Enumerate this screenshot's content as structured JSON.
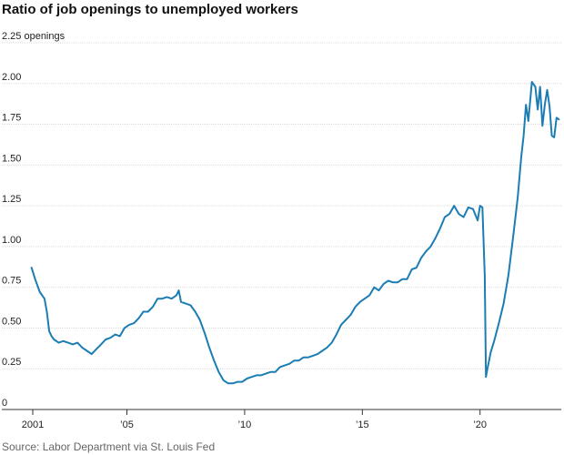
{
  "title": "Ratio of job openings to unemployed workers",
  "source": "Source: Labor Department via St. Louis Fed",
  "chart_data": {
    "type": "line",
    "title": "Ratio of job openings to unemployed workers",
    "ylabel": "",
    "xlabel": "",
    "unit_label": "openings",
    "ylim": [
      0,
      2.25
    ],
    "xlim": [
      2001.0,
      2023.45
    ],
    "y_ticks": [
      0,
      0.25,
      0.5,
      0.75,
      1.0,
      1.25,
      1.5,
      1.75,
      2.0,
      2.25
    ],
    "y_tick_labels": [
      "0",
      "0.25",
      "0.50",
      "0.75",
      "1.00",
      "1.25",
      "1.50",
      "1.75",
      "2.00",
      "2.25 openings"
    ],
    "x_ticks": [
      2001,
      2005,
      2010,
      2015,
      2020
    ],
    "x_tick_labels": [
      "2001",
      "’05",
      "’10",
      "’15",
      "’20"
    ],
    "grid": true,
    "line_color": "#1b7db3",
    "series": [
      {
        "x": [
          2000.95,
          2001.1,
          2001.3,
          2001.5,
          2001.6,
          2001.7,
          2001.8,
          2001.9,
          2002.1,
          2002.3,
          2002.5,
          2002.7,
          2002.9,
          2003.1,
          2003.3,
          2003.5,
          2003.7,
          2003.9,
          2004.1,
          2004.3,
          2004.5,
          2004.7,
          2004.9,
          2005.1,
          2005.3,
          2005.5,
          2005.7,
          2005.9,
          2006.1,
          2006.3,
          2006.5,
          2006.7,
          2006.9,
          2007.1,
          2007.2,
          2007.3,
          2007.5,
          2007.7,
          2007.9,
          2008.1,
          2008.3,
          2008.5,
          2008.7,
          2008.9,
          2009.1,
          2009.3,
          2009.5,
          2009.7,
          2009.9,
          2010.1,
          2010.3,
          2010.5,
          2010.7,
          2010.9,
          2011.1,
          2011.3,
          2011.5,
          2011.7,
          2011.9,
          2012.1,
          2012.3,
          2012.5,
          2012.7,
          2012.9,
          2013.1,
          2013.3,
          2013.5,
          2013.7,
          2013.9,
          2014.1,
          2014.3,
          2014.5,
          2014.7,
          2014.9,
          2015.1,
          2015.3,
          2015.5,
          2015.7,
          2015.9,
          2016.1,
          2016.3,
          2016.5,
          2016.7,
          2016.9,
          2017.1,
          2017.3,
          2017.5,
          2017.7,
          2017.9,
          2018.1,
          2018.3,
          2018.5,
          2018.7,
          2018.9,
          2019.1,
          2019.3,
          2019.5,
          2019.7,
          2019.9,
          2020.0,
          2020.1,
          2020.2,
          2020.25,
          2020.3,
          2020.45,
          2020.6,
          2020.8,
          2021.0,
          2021.2,
          2021.4,
          2021.6,
          2021.75,
          2021.85,
          2021.95,
          2022.05,
          2022.2,
          2022.35,
          2022.45,
          2022.55,
          2022.65,
          2022.75,
          2022.85,
          2022.95,
          2023.05,
          2023.15,
          2023.25,
          2023.35
        ],
        "y": [
          0.87,
          0.8,
          0.72,
          0.68,
          0.6,
          0.48,
          0.45,
          0.43,
          0.41,
          0.42,
          0.41,
          0.4,
          0.41,
          0.38,
          0.36,
          0.34,
          0.37,
          0.4,
          0.43,
          0.44,
          0.46,
          0.45,
          0.5,
          0.52,
          0.53,
          0.56,
          0.6,
          0.6,
          0.63,
          0.68,
          0.68,
          0.69,
          0.68,
          0.7,
          0.73,
          0.66,
          0.65,
          0.64,
          0.6,
          0.55,
          0.47,
          0.38,
          0.3,
          0.23,
          0.18,
          0.16,
          0.16,
          0.17,
          0.17,
          0.19,
          0.2,
          0.21,
          0.21,
          0.22,
          0.23,
          0.23,
          0.26,
          0.27,
          0.28,
          0.3,
          0.3,
          0.32,
          0.32,
          0.33,
          0.34,
          0.36,
          0.38,
          0.41,
          0.46,
          0.52,
          0.55,
          0.58,
          0.63,
          0.66,
          0.68,
          0.7,
          0.75,
          0.73,
          0.77,
          0.79,
          0.78,
          0.78,
          0.8,
          0.8,
          0.86,
          0.87,
          0.93,
          0.97,
          1.0,
          1.05,
          1.11,
          1.18,
          1.2,
          1.25,
          1.2,
          1.18,
          1.24,
          1.23,
          1.16,
          1.25,
          1.24,
          0.82,
          0.2,
          0.24,
          0.35,
          0.42,
          0.53,
          0.65,
          0.82,
          1.05,
          1.3,
          1.55,
          1.68,
          1.87,
          1.77,
          2.01,
          1.98,
          1.84,
          1.98,
          1.74,
          1.87,
          1.96,
          1.86,
          1.68,
          1.67,
          1.79,
          1.78
        ]
      }
    ]
  }
}
